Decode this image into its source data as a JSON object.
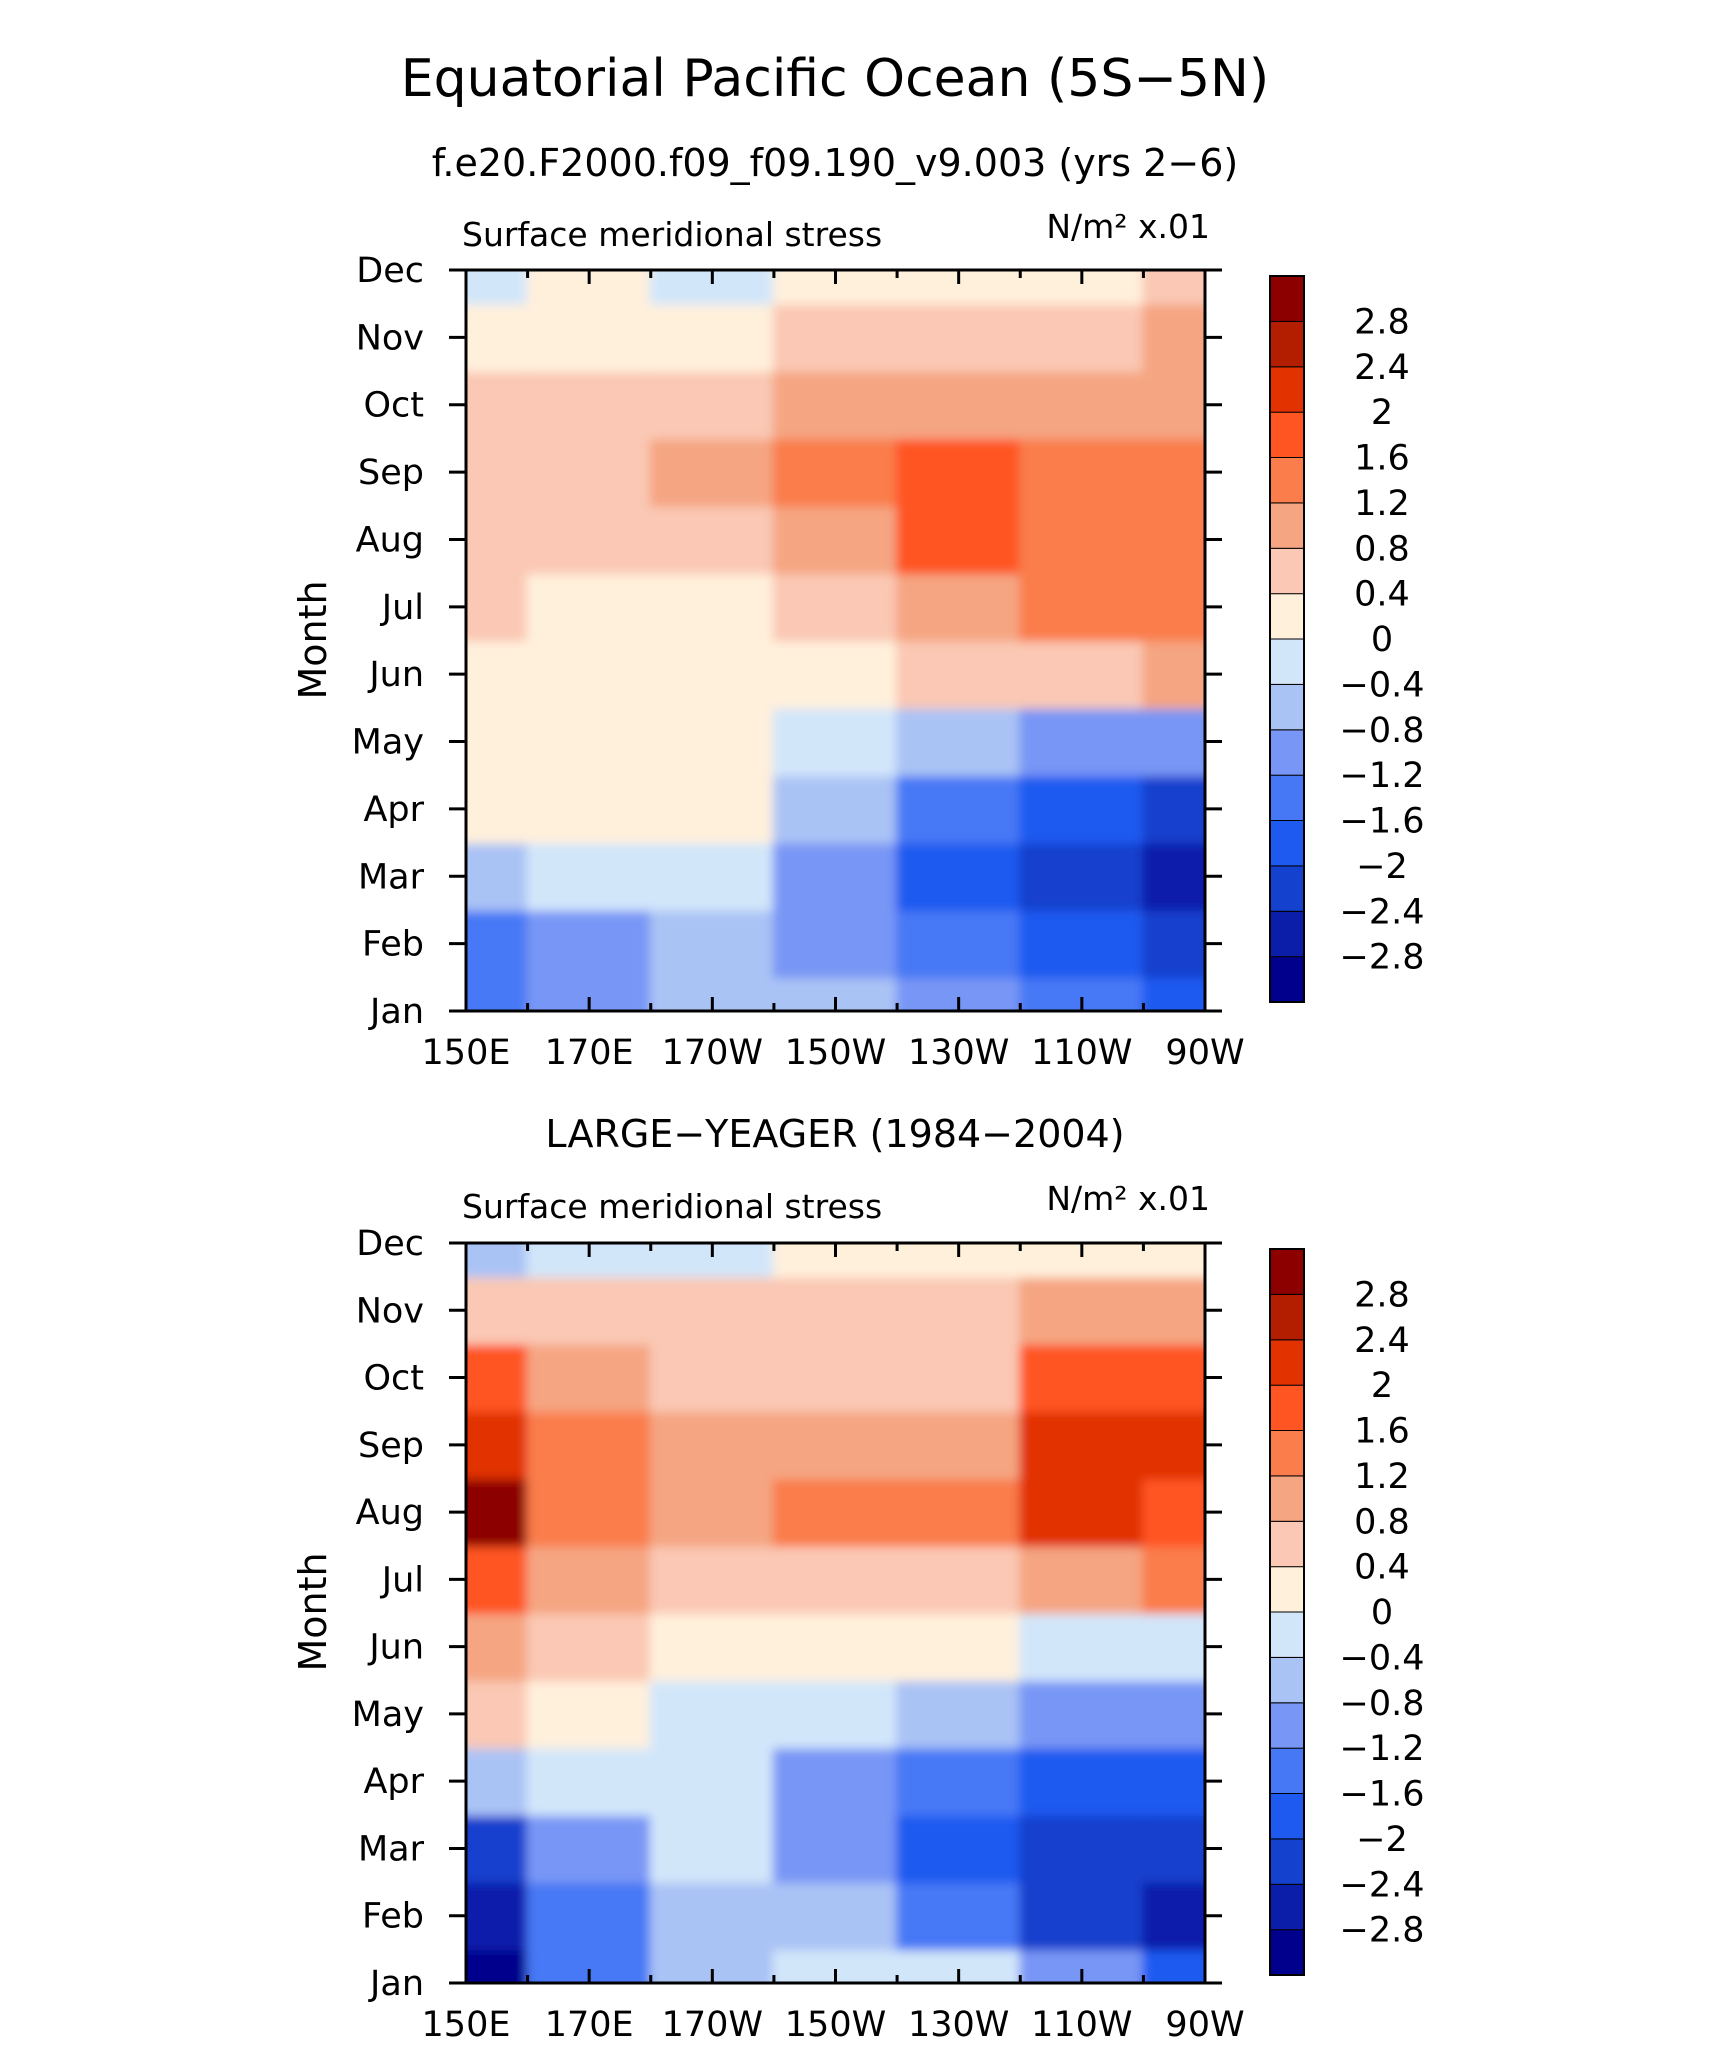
{
  "figure": {
    "title": "Equatorial Pacific Ocean (5S−5N)"
  },
  "colorbar": {
    "colors": [
      "#00008c",
      "#0a1eaa",
      "#1441cd",
      "#1e5af0",
      "#4678f5",
      "#7896f5",
      "#aac3f5",
      "#d2e6fa",
      "#fff0dc",
      "#fac8b4",
      "#f5a582",
      "#fa7d4b",
      "#ff5523",
      "#e13200",
      "#b41e00",
      "#8c0000"
    ],
    "labels": [
      "−2.8",
      "−2.4",
      "−2",
      "−1.6",
      "−1.2",
      "−0.8",
      "−0.4",
      "0",
      "0.4",
      "0.8",
      "1.2",
      "1.6",
      "2",
      "2.4",
      "2.8"
    ]
  },
  "chart_data": [
    {
      "type": "heatmap",
      "title": "f.e20.F2000.f09_f09.190_v9.003 (yrs 2−6)",
      "left_label": "Surface meridional stress",
      "units_label": "N/m² x.01",
      "xlabel": "",
      "ylabel": "Month",
      "x": [
        "150E",
        "170E",
        "170W",
        "150W",
        "130W",
        "110W",
        "90W"
      ],
      "y": [
        "Jan",
        "Feb",
        "Mar",
        "Apr",
        "May",
        "Jun",
        "Jul",
        "Aug",
        "Sep",
        "Oct",
        "Nov",
        "Dec"
      ],
      "values": [
        [
          -1.6,
          -1.2,
          -0.8,
          -0.8,
          -1.2,
          -1.6,
          -2.0
        ],
        [
          -1.6,
          -1.2,
          -0.8,
          -1.2,
          -1.6,
          -2.0,
          -2.4
        ],
        [
          -0.8,
          -0.4,
          -0.4,
          -1.2,
          -2.0,
          -2.4,
          -2.8
        ],
        [
          0.2,
          0.2,
          0.2,
          -0.8,
          -1.6,
          -2.0,
          -2.4
        ],
        [
          0.2,
          0.2,
          0.2,
          -0.4,
          -0.8,
          -1.2,
          -1.2
        ],
        [
          0.2,
          0.2,
          0.2,
          0.2,
          0.4,
          0.4,
          0.8
        ],
        [
          0.4,
          0.2,
          0.2,
          0.4,
          0.8,
          1.2,
          1.2
        ],
        [
          0.4,
          0.4,
          0.4,
          0.8,
          1.6,
          1.2,
          1.2
        ],
        [
          0.4,
          0.4,
          0.8,
          1.2,
          1.6,
          1.2,
          1.2
        ],
        [
          0.4,
          0.4,
          0.4,
          0.8,
          0.8,
          0.8,
          0.8
        ],
        [
          0.2,
          0.2,
          0.2,
          0.4,
          0.4,
          0.4,
          0.8
        ],
        [
          -0.2,
          0.2,
          -0.2,
          0.2,
          0.2,
          0.2,
          0.4
        ]
      ],
      "zlim": [
        -3.2,
        3.2
      ]
    },
    {
      "type": "heatmap",
      "title": "LARGE−YEAGER (1984−2004)",
      "left_label": "Surface meridional stress",
      "units_label": "N/m² x.01",
      "xlabel": "",
      "ylabel": "Month",
      "x": [
        "150E",
        "170E",
        "170W",
        "150W",
        "130W",
        "110W",
        "90W"
      ],
      "y": [
        "Jan",
        "Feb",
        "Mar",
        "Apr",
        "May",
        "Jun",
        "Jul",
        "Aug",
        "Sep",
        "Oct",
        "Nov",
        "Dec"
      ],
      "values": [
        [
          -3.0,
          -1.6,
          -0.8,
          -0.4,
          -0.4,
          -1.2,
          -2.0
        ],
        [
          -2.8,
          -1.6,
          -0.8,
          -0.8,
          -1.6,
          -2.4,
          -2.8
        ],
        [
          -2.4,
          -1.2,
          -0.4,
          -1.2,
          -2.0,
          -2.4,
          -2.4
        ],
        [
          -0.8,
          -0.4,
          -0.2,
          -1.2,
          -1.6,
          -2.0,
          -2.0
        ],
        [
          0.4,
          0.2,
          -0.2,
          -0.4,
          -0.8,
          -1.2,
          -1.2
        ],
        [
          0.8,
          0.4,
          0.2,
          0.2,
          0.2,
          -0.2,
          -0.4
        ],
        [
          1.6,
          0.8,
          0.4,
          0.4,
          0.4,
          0.8,
          1.2
        ],
        [
          2.8,
          1.2,
          0.8,
          1.2,
          1.2,
          2.0,
          1.6
        ],
        [
          2.0,
          1.2,
          0.8,
          0.8,
          0.8,
          2.4,
          2.0
        ],
        [
          1.6,
          0.8,
          0.4,
          0.4,
          0.4,
          1.6,
          1.6
        ],
        [
          0.4,
          0.4,
          0.4,
          0.4,
          0.4,
          0.8,
          0.8
        ],
        [
          -0.8,
          -0.4,
          -0.4,
          0.2,
          0.2,
          0.2,
          0.2
        ]
      ],
      "zlim": [
        -3.2,
        3.2
      ]
    }
  ]
}
